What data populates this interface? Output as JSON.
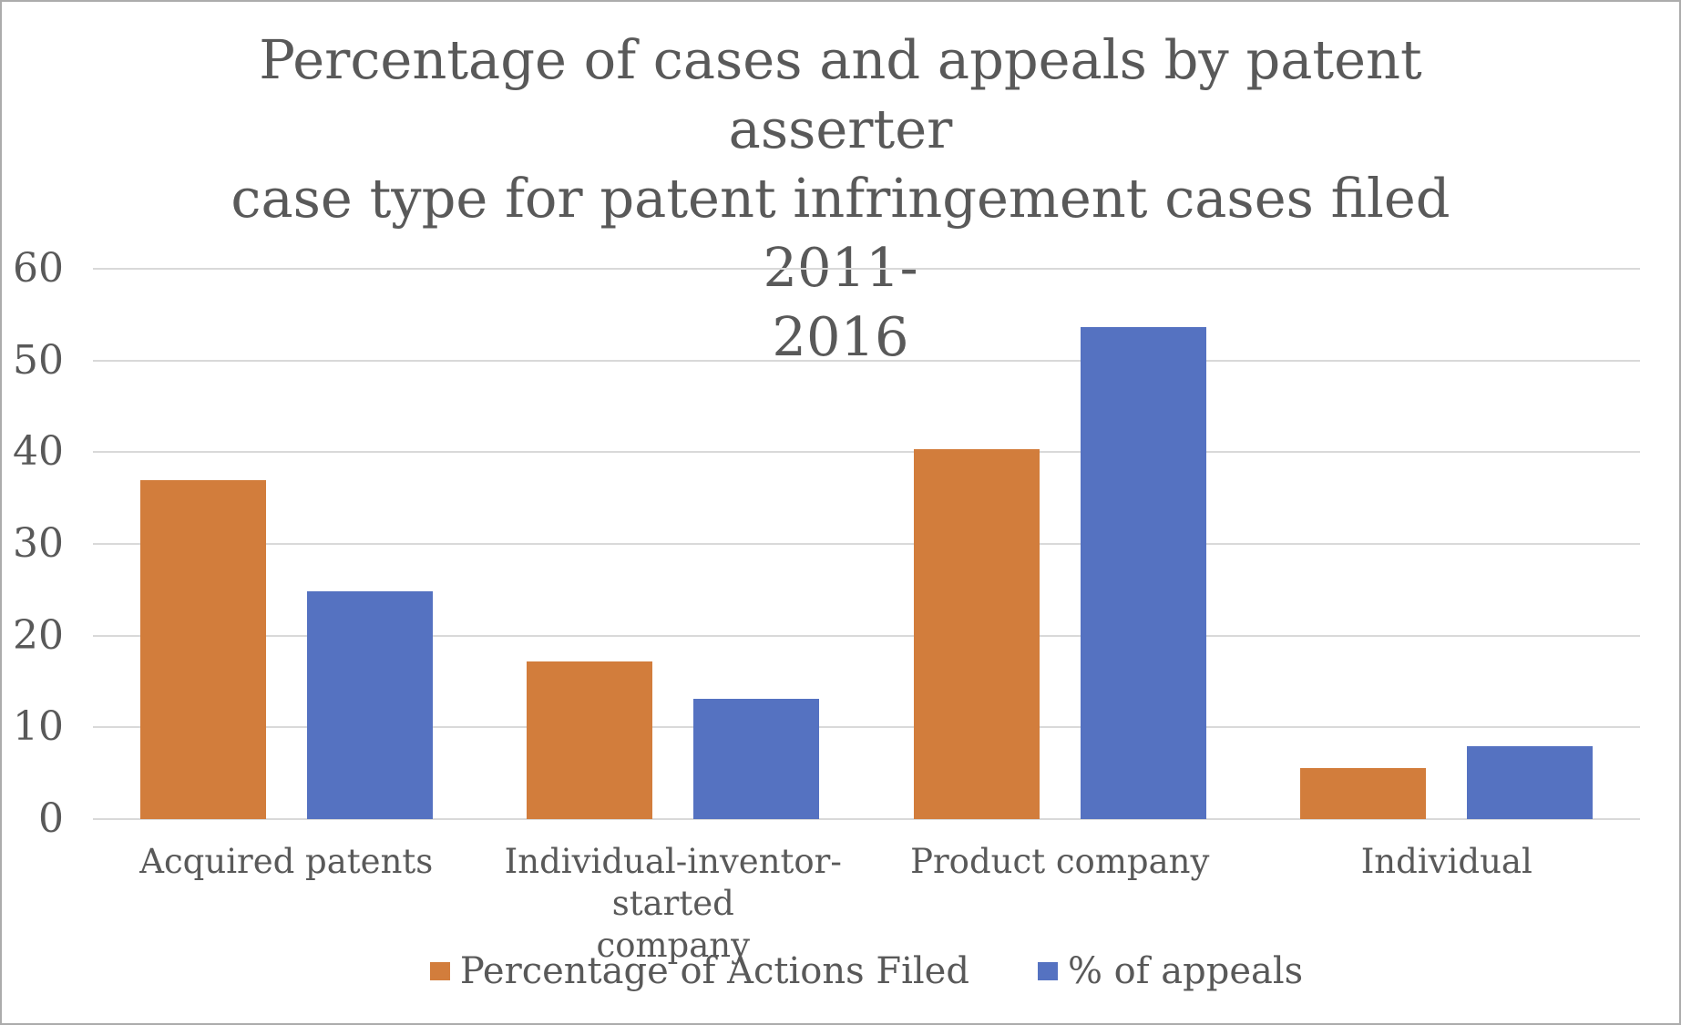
{
  "page": {
    "background": "#ffffff",
    "border_color": "#acacac",
    "text_color": "#595959",
    "gridline_color": "#d9d9d9"
  },
  "chart_data": {
    "type": "bar",
    "title": "Percentage of cases and appeals by patent asserter case type for patent infringement cases filed 2011-2016",
    "title_lines": [
      "Percentage of cases and appeals by patent asserter",
      "case type for patent infringement cases filed 2011-",
      "2016"
    ],
    "categories": [
      "Acquired patents",
      "Individual-inventor-started company",
      "Product company",
      "Individual"
    ],
    "category_label_lines": [
      [
        "Acquired patents"
      ],
      [
        "Individual-inventor-started",
        "company"
      ],
      [
        "Product company"
      ],
      [
        "Individual"
      ]
    ],
    "series": [
      {
        "name": "Percentage of Actions Filed",
        "color": "#d27d3c",
        "values": [
          37,
          17.2,
          40.3,
          5.6
        ]
      },
      {
        "name": "% of appeals",
        "color": "#5572c1",
        "values": [
          24.8,
          13.1,
          53.6,
          8.0
        ]
      }
    ],
    "xlabel": "",
    "ylabel": "",
    "ylim": [
      0,
      60
    ],
    "y_ticks": [
      0,
      10,
      20,
      30,
      40,
      50,
      60
    ],
    "grid": true,
    "legend_position": "bottom"
  }
}
